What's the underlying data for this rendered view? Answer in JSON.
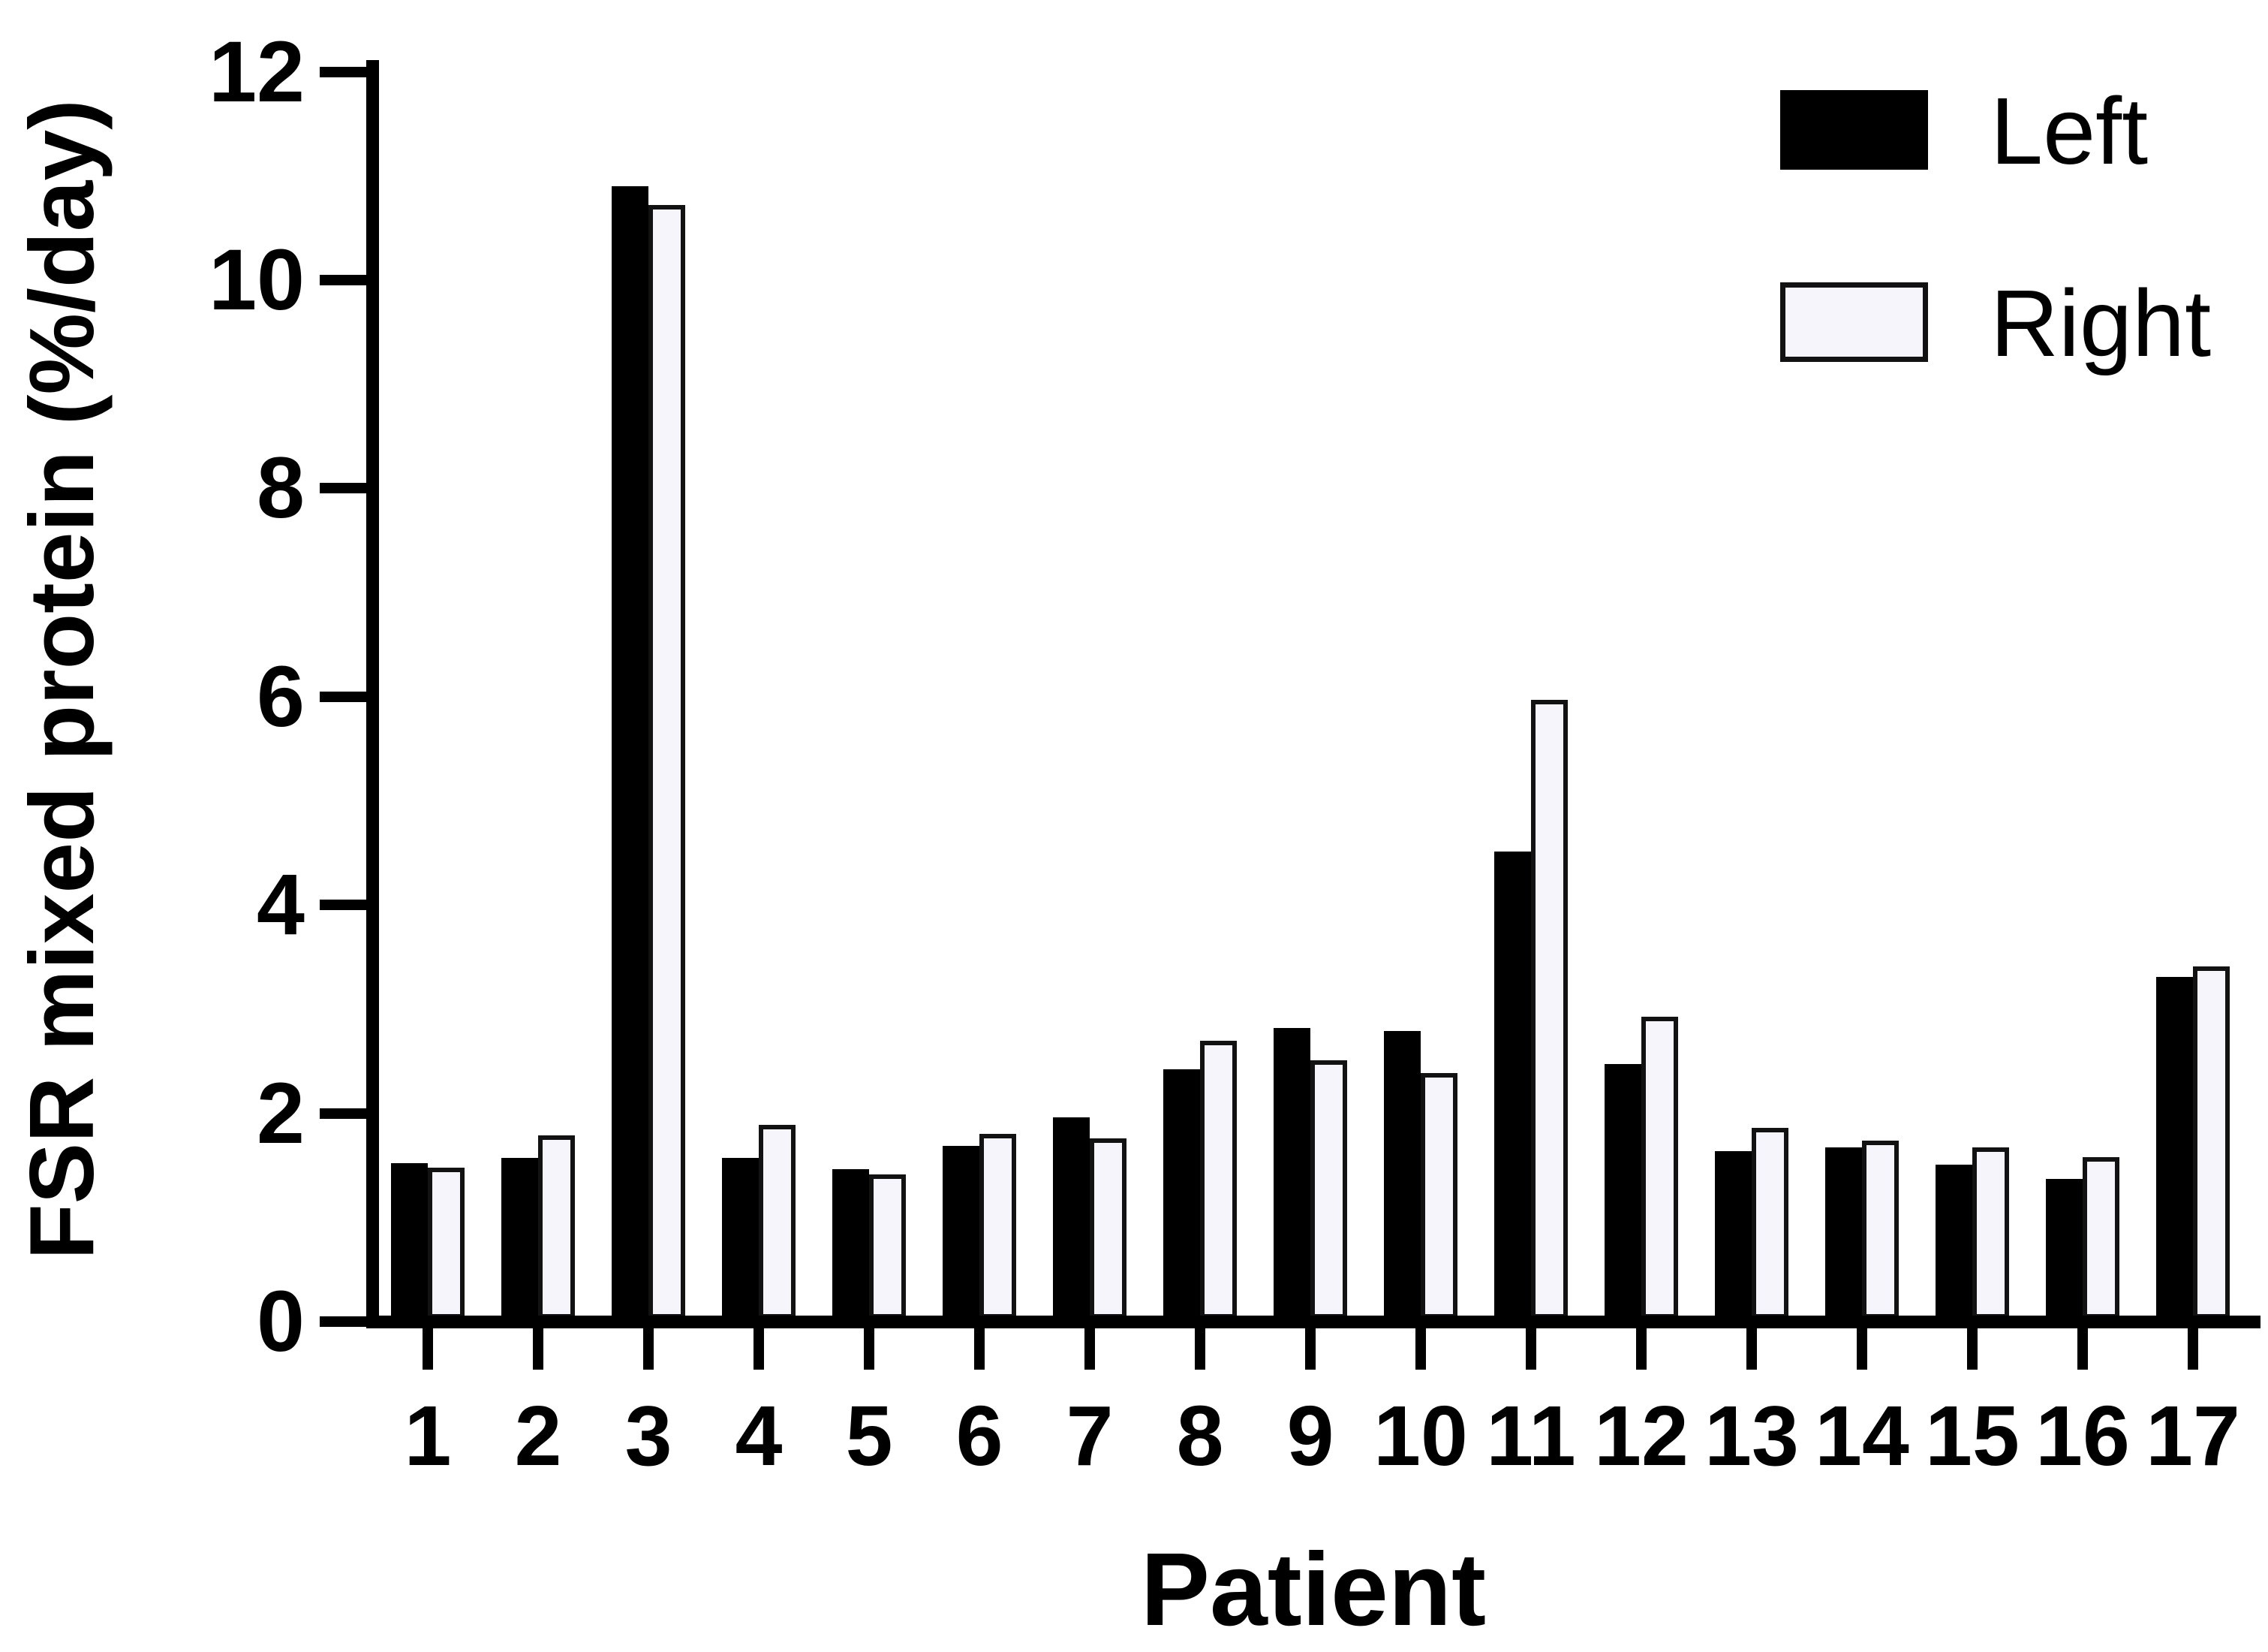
{
  "chart_data": {
    "type": "bar",
    "title": "",
    "xlabel": "Patient",
    "ylabel": "FSR mixed protein (%/day)",
    "categories": [
      "1",
      "2",
      "3",
      "4",
      "5",
      "6",
      "7",
      "8",
      "9",
      "10",
      "11",
      "12",
      "13",
      "14",
      "15",
      "16",
      "17"
    ],
    "series": [
      {
        "name": "Left",
        "fill": "#000000",
        "border": "#000000",
        "values": [
          1.52,
          1.57,
          10.9,
          1.57,
          1.46,
          1.69,
          1.96,
          2.42,
          2.82,
          2.79,
          4.51,
          2.47,
          1.64,
          1.67,
          1.51,
          1.37,
          3.31
        ]
      },
      {
        "name": "Right",
        "fill": "#f5f5fb",
        "border": "#121212",
        "values": [
          1.48,
          1.79,
          10.72,
          1.89,
          1.41,
          1.8,
          1.76,
          2.7,
          2.51,
          2.39,
          5.97,
          2.93,
          1.86,
          1.74,
          1.67,
          1.58,
          3.41
        ]
      }
    ],
    "ylim": [
      0,
      12
    ],
    "yticks": [
      0,
      2,
      4,
      6,
      8,
      10,
      12
    ],
    "grid": false,
    "legend_position": "top-right",
    "axis_color": "#000000"
  }
}
